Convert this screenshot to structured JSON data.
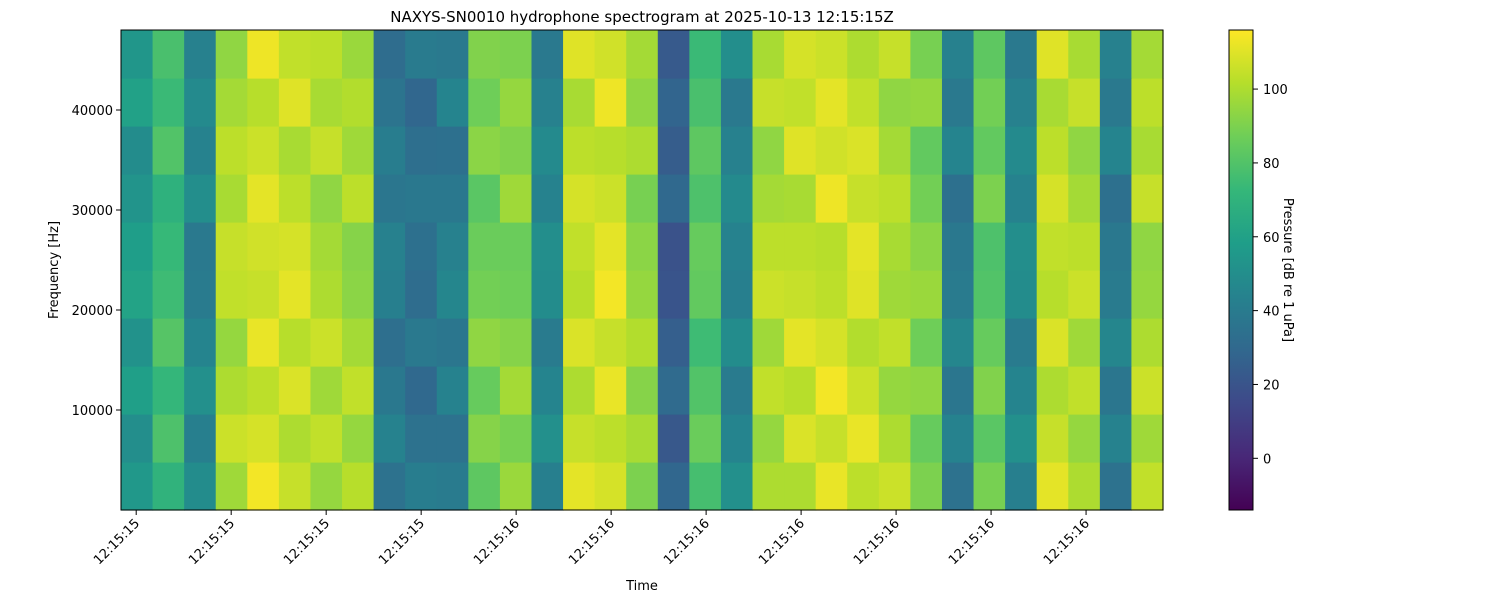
{
  "chart_data": {
    "type": "heatmap",
    "title": "NAXYS-SN0010 hydrophone spectrogram at 2025-10-13 12:15:15Z",
    "xlabel": "Time",
    "ylabel": "Frequency [Hz]",
    "colorbar_label": "Pressure [dB re 1 uPa]",
    "colormap": "viridis",
    "xlim": [
      15.584,
      16.681
    ],
    "xticks": [
      {
        "value": 15.6,
        "label": "12:15:15"
      },
      {
        "value": 15.7,
        "label": "12:15:15"
      },
      {
        "value": 15.8,
        "label": "12:15:15"
      },
      {
        "value": 15.9,
        "label": "12:15:15"
      },
      {
        "value": 16.0,
        "label": "12:15:16"
      },
      {
        "value": 16.1,
        "label": "12:15:16"
      },
      {
        "value": 16.2,
        "label": "12:15:16"
      },
      {
        "value": 16.3,
        "label": "12:15:16"
      },
      {
        "value": 16.4,
        "label": "12:15:16"
      },
      {
        "value": 16.5,
        "label": "12:15:16"
      },
      {
        "value": 16.6,
        "label": "12:15:16"
      }
    ],
    "ylim": [
      0,
      48000
    ],
    "yticks": [
      10000,
      20000,
      30000,
      40000
    ],
    "clim": [
      -14,
      116
    ],
    "cticks": [
      0,
      20,
      40,
      60,
      80,
      100
    ],
    "z": [
      [
        55,
        70,
        49,
        97,
        114,
        105,
        95,
        102,
        35,
        41,
        40,
        83,
        96,
        42,
        111,
        108,
        90,
        29,
        77,
        51,
        100,
        100,
        112,
        103,
        106,
        90,
        35,
        89,
        42,
        111,
        100,
        35,
        104
      ],
      [
        50,
        79,
        42,
        106,
        108,
        100,
        104,
        95,
        44,
        35,
        35,
        92,
        89,
        51,
        105,
        103,
        99,
        22,
        86,
        45,
        95,
        109,
        105,
        112,
        100,
        85,
        44,
        82,
        51,
        105,
        95,
        44,
        97
      ],
      [
        59,
        72,
        51,
        100,
        103,
        109,
        97,
        104,
        38,
        30,
        44,
        85,
        98,
        45,
        100,
        112,
        92,
        31,
        80,
        40,
        104,
        102,
        114,
        106,
        95,
        94,
        37,
        91,
        45,
        100,
        104,
        37,
        106
      ],
      [
        52,
        81,
        45,
        95,
        112,
        102,
        106,
        98,
        33,
        39,
        37,
        94,
        92,
        40,
        109,
        105,
        101,
        25,
        75,
        49,
        97,
        111,
        108,
        101,
        104,
        87,
        46,
        85,
        40,
        109,
        97,
        46,
        100
      ],
      [
        61,
        75,
        40,
        104,
        105,
        111,
        100,
        93,
        42,
        32,
        46,
        88,
        87,
        49,
        102,
        114,
        95,
        20,
        84,
        42,
        106,
        105,
        103,
        110,
        97,
        96,
        40,
        80,
        49,
        102,
        106,
        40,
        95
      ],
      [
        58,
        73,
        39,
        105,
        107,
        108,
        98,
        92,
        43,
        34,
        43,
        86,
        86,
        50,
        104,
        111,
        93,
        19,
        85,
        44,
        103,
        103,
        102,
        111,
        99,
        93,
        38,
        79,
        50,
        104,
        103,
        38,
        94
      ],
      [
        53,
        69,
        50,
        99,
        111,
        103,
        94,
        103,
        37,
        38,
        38,
        82,
        97,
        44,
        108,
        106,
        89,
        30,
        79,
        48,
        98,
        99,
        113,
        105,
        103,
        88,
        34,
        90,
        44,
        108,
        98,
        34,
        105
      ],
      [
        49,
        80,
        44,
        103,
        106,
        99,
        105,
        97,
        41,
        33,
        34,
        93,
        91,
        48,
        103,
        102,
        100,
        24,
        83,
        43,
        94,
        110,
        107,
        109,
        98,
        84,
        45,
        84,
        48,
        103,
        94,
        45,
        99
      ],
      [
        60,
        74,
        48,
        98,
        102,
        110,
        99,
        101,
        36,
        29,
        45,
        87,
        95,
        43,
        99,
        113,
        94,
        28,
        78,
        39,
        105,
        104,
        111,
        104,
        94,
        95,
        39,
        88,
        43,
        99,
        105,
        39,
        103
      ],
      [
        54,
        78,
        43,
        94,
        113,
        104,
        103,
        96,
        32,
        40,
        39,
        91,
        90,
        39,
        110,
        107,
        98,
        23,
        74,
        50,
        99,
        108,
        106,
        100,
        105,
        89,
        43,
        83,
        39,
        110,
        99,
        43,
        98
      ]
    ]
  }
}
